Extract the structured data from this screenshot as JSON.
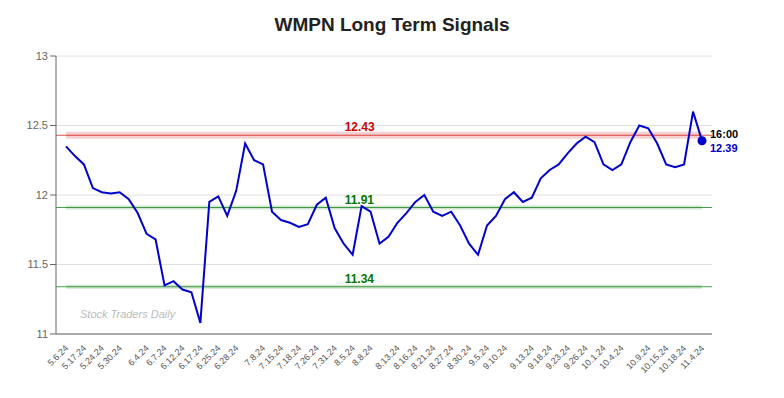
{
  "chart_data": {
    "type": "line",
    "title": "WMPN Long Term Signals",
    "color": "#0000cc",
    "grid": true,
    "ylim": [
      11,
      13
    ],
    "yticks": [
      11,
      11.5,
      12,
      12.5,
      13
    ],
    "categories": [
      "5.6.24",
      null,
      "5.17.24",
      null,
      "5.24.24",
      null,
      "5.30.24",
      null,
      null,
      "6.4.24",
      null,
      "6.7.24",
      null,
      "6.12.24",
      null,
      "6.17.24",
      null,
      "6.25.24",
      null,
      "6.28.24",
      null,
      null,
      "7.8.24",
      null,
      "7.15.24",
      null,
      "7.18.24",
      null,
      "7.26.24",
      null,
      "7.31.24",
      null,
      "8.5.24",
      null,
      "8.8.24",
      null,
      null,
      "8.13.24",
      null,
      "8.16.24",
      null,
      "8.21.24",
      null,
      "8.27.24",
      null,
      "8.30.24",
      null,
      "9.5.24",
      null,
      "9.10.24",
      null,
      null,
      "9.13.24",
      null,
      "9.18.24",
      null,
      "9.23.24",
      null,
      "9.26.24",
      null,
      "10.1.24",
      null,
      "10.4.24",
      null,
      null,
      "10.9.24",
      null,
      "10.15.24",
      null,
      "10.18.24",
      null,
      "11.4.24"
    ],
    "values": [
      12.35,
      12.28,
      12.22,
      12.05,
      12.02,
      12.01,
      12.02,
      11.97,
      11.87,
      11.72,
      11.68,
      11.35,
      11.38,
      11.32,
      11.3,
      11.08,
      11.95,
      11.99,
      11.85,
      12.03,
      12.37,
      12.25,
      12.22,
      11.88,
      11.82,
      11.8,
      11.77,
      11.79,
      11.93,
      11.98,
      11.76,
      11.65,
      11.57,
      11.92,
      11.88,
      11.65,
      11.7,
      11.8,
      11.87,
      11.95,
      12.0,
      11.88,
      11.85,
      11.88,
      11.78,
      11.65,
      11.57,
      11.78,
      11.85,
      11.97,
      12.02,
      11.95,
      11.98,
      12.12,
      12.18,
      12.22,
      12.3,
      12.37,
      12.42,
      12.38,
      12.22,
      12.18,
      12.22,
      12.38,
      12.5,
      12.48,
      12.37,
      12.22,
      12.2,
      12.22,
      12.6,
      12.39
    ],
    "value_labels": [
      null,
      null,
      null,
      null,
      null,
      null,
      null,
      null,
      null,
      null,
      null,
      null,
      null,
      null,
      null,
      null,
      null,
      null,
      null,
      null,
      null,
      null,
      null,
      null,
      null,
      null,
      null,
      null,
      null,
      null,
      null,
      null,
      null,
      null,
      null,
      null,
      null,
      null,
      null,
      null,
      null,
      null,
      null,
      null,
      null,
      null,
      null,
      null,
      null,
      null,
      null,
      null,
      null,
      null,
      null,
      null,
      null,
      null,
      null,
      null,
      null,
      null,
      null,
      null,
      null,
      null,
      null,
      null,
      null,
      null,
      null,
      "12.39"
    ],
    "reference_lines": [
      {
        "y": 12.43,
        "half_width": 0.025,
        "label": "12.43",
        "color": "#cc0000"
      },
      {
        "y": 11.91,
        "half_width": 0.015,
        "label": "11.91",
        "color": "#007700"
      },
      {
        "y": 11.34,
        "half_width": 0.015,
        "label": "11.34",
        "color": "#007700"
      }
    ],
    "annotations": [
      {
        "text": "16:00",
        "color": "#000000"
      },
      {
        "text": "Stock Traders Daily",
        "color": "#bbbbbb"
      }
    ]
  }
}
